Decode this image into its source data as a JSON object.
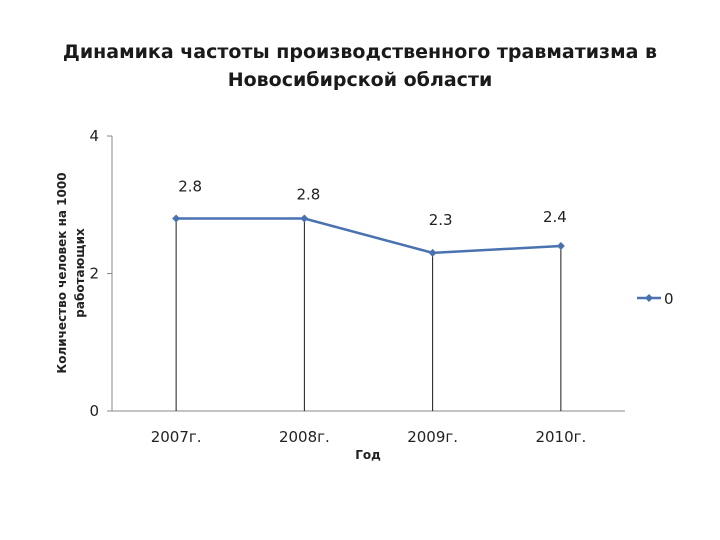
{
  "chart_data": {
    "type": "line",
    "title": [
      "Динамика частоты производственного травматизма в",
      "Новосибирской области"
    ],
    "xlabel": "Год",
    "ylabel": [
      "Количество человек на  1000",
      "работающих"
    ],
    "categories": [
      "2007г.",
      "2008г.",
      "2009г.",
      "2010г."
    ],
    "series": [
      {
        "name": "0",
        "values": [
          2.8,
          2.8,
          2.3,
          2.4
        ],
        "color": "#4a72b0"
      }
    ],
    "data_labels": [
      "2.8",
      "2.8",
      "2.3",
      "2.4"
    ],
    "ylim": [
      0,
      4
    ],
    "yticks": [
      0,
      2,
      4
    ],
    "grid": false,
    "drop_lines": true,
    "legend": "right"
  }
}
